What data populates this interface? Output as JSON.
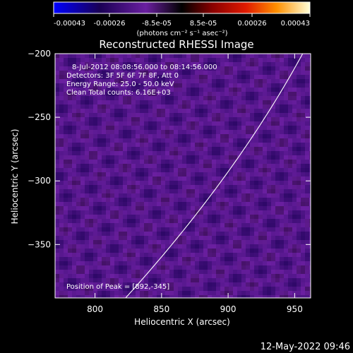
{
  "chart_data": {
    "type": "heatmap",
    "title": "Reconstructed RHESSI Image",
    "xlabel": "Heliocentric X (arcsec)",
    "ylabel": "Heliocentric Y (arcsec)",
    "xlim": [
      770,
      962
    ],
    "ylim": [
      -392,
      -200
    ],
    "xticks": [
      800,
      850,
      900,
      950
    ],
    "yticks": [
      -200,
      -250,
      -300,
      -350
    ],
    "colorbar": {
      "range": [
        -0.00043,
        0.00043
      ],
      "tick_labels": [
        "-0.00043",
        "-0.00026",
        "-8.5e-05",
        "8.5e-05",
        "0.00026",
        "0.00043"
      ],
      "units": "(photons cm⁻² s⁻¹ asec⁻²)"
    },
    "annotations": [
      "8-Jul-2012 08:08:56.000 to 08:14:56.000",
      "Detectors: 3F 5F 6F 7F 8F, Att 0",
      "Energy Range: 25.0 - 50.0 keV",
      "Clean    Total counts: 6.16E+03"
    ],
    "peak_label": "Position of Peak = [892,-345]",
    "peak": {
      "x": 892,
      "y": -345
    },
    "colors": {
      "axes": "#ffffff",
      "background": "#000000"
    }
  },
  "timestamp": "12-May-2022 09:46"
}
